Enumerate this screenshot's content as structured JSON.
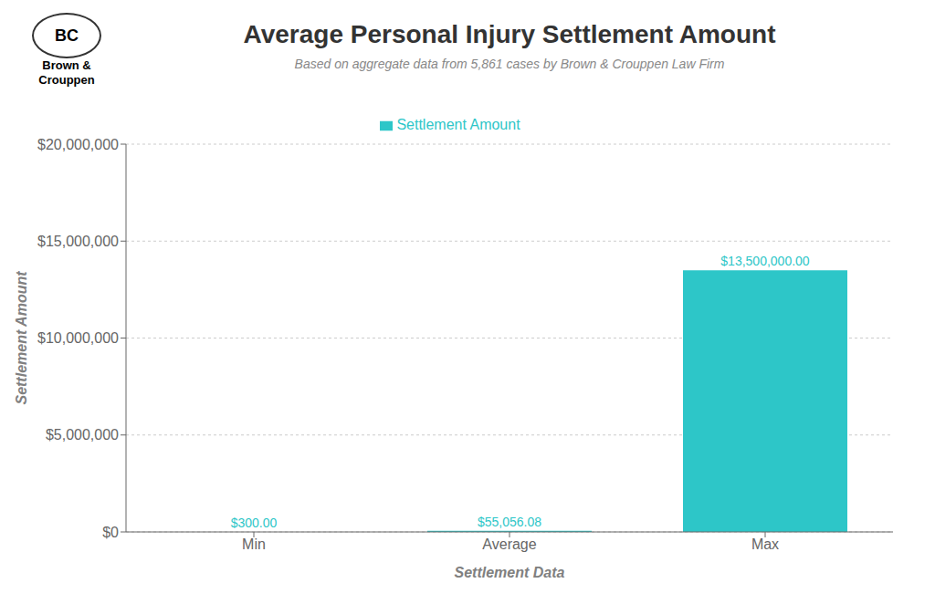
{
  "chart_data": {
    "type": "bar",
    "title": "Average Personal Injury Settlement Amount",
    "subtitle": "Based on aggregate data from 5,861 cases by Brown & Crouppen Law Firm",
    "annotations": [
      "BC",
      "Brown &",
      "Crouppen"
    ],
    "categories": [
      "Min",
      "Average",
      "Max"
    ],
    "series": [
      {
        "name": "Settlement Amount",
        "color": "#2dc6c8",
        "values": [
          300.0,
          55056.08,
          13500000.0
        ],
        "value_labels": [
          "$300.00",
          "$55,056.08",
          "$13,500,000.00"
        ]
      }
    ],
    "data_labels": true,
    "xlabel": "Settlement Data",
    "ylabel": "Settlement Amount",
    "ylim": [
      0,
      20000000
    ],
    "yticks": [
      {
        "value": 0,
        "label": "$0"
      },
      {
        "value": 5000000,
        "label": "$5,000,000"
      },
      {
        "value": 10000000,
        "label": "$10,000,000"
      },
      {
        "value": 15000000,
        "label": "$15,000,000"
      },
      {
        "value": 20000000,
        "label": "$20,000,000"
      }
    ],
    "grid": "y",
    "legend": "top"
  }
}
